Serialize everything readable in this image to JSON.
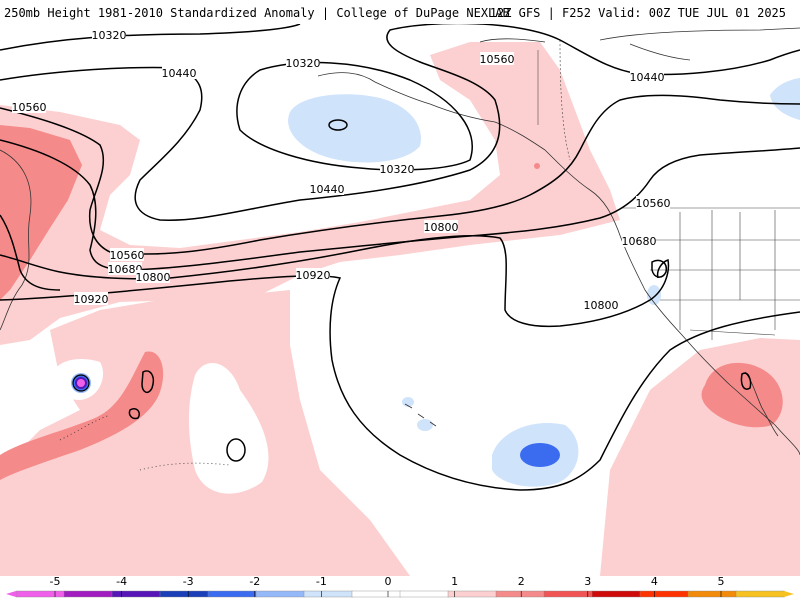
{
  "header": {
    "left": "250mb Height 1981-2010 Standardized Anomaly | College of DuPage NEXLAB",
    "right": "12Z GFS | F252 Valid: 00Z TUE JUL 01 2025"
  },
  "contours": {
    "labels": [
      "10320",
      "10320",
      "10320",
      "10440",
      "10440",
      "10440",
      "10560",
      "10560",
      "10560",
      "10560",
      "10680",
      "10680",
      "10800",
      "10800",
      "10800",
      "10920",
      "10920"
    ]
  },
  "colorbar": {
    "ticks": [
      "-5",
      "-4",
      "-3",
      "-2",
      "-1",
      "0",
      "1",
      "2",
      "3",
      "4",
      "5"
    ],
    "colors": [
      "#ef5fe9",
      "#a21dc0",
      "#5716b7",
      "#1a3fb8",
      "#3b6cf0",
      "#94b8f8",
      "#cfe3fb",
      "#ffffff",
      "#ffffff",
      "#fcd0d0",
      "#f58a8a",
      "#f05454",
      "#cf0a0a",
      "#ff3300",
      "#f28b0c",
      "#f7c221"
    ]
  }
}
